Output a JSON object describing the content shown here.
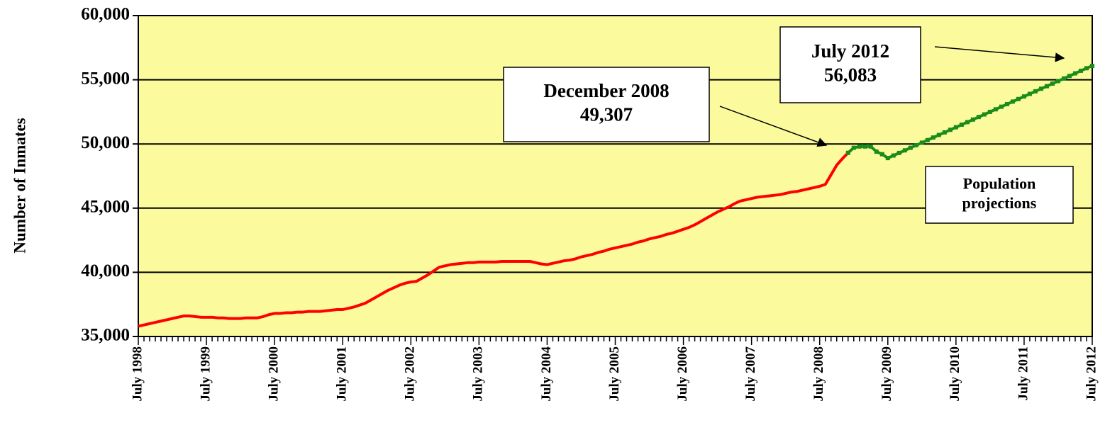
{
  "chart_data": {
    "type": "line",
    "y_label": "Number of Inmates",
    "categories": [
      "July 1998",
      null,
      null,
      null,
      null,
      null,
      null,
      null,
      null,
      null,
      null,
      null,
      "July 1999",
      null,
      null,
      null,
      null,
      null,
      null,
      null,
      null,
      null,
      null,
      null,
      "July 2000",
      null,
      null,
      null,
      null,
      null,
      null,
      null,
      null,
      null,
      null,
      null,
      "July 2001",
      null,
      null,
      null,
      null,
      null,
      null,
      null,
      null,
      null,
      null,
      null,
      "July 2002",
      null,
      null,
      null,
      null,
      null,
      null,
      null,
      null,
      null,
      null,
      null,
      "July 2003",
      null,
      null,
      null,
      null,
      null,
      null,
      null,
      null,
      null,
      null,
      null,
      "July 2004",
      null,
      null,
      null,
      null,
      null,
      null,
      null,
      null,
      null,
      null,
      null,
      "July 2005",
      null,
      null,
      null,
      null,
      null,
      null,
      null,
      null,
      null,
      null,
      null,
      "July 2006",
      null,
      null,
      null,
      null,
      null,
      null,
      null,
      null,
      null,
      null,
      null,
      "July 2007",
      null,
      null,
      null,
      null,
      null,
      null,
      null,
      null,
      null,
      null,
      null,
      "July 2008",
      null,
      null,
      null,
      null,
      null,
      null,
      null,
      null,
      null,
      null,
      null,
      "July 2009",
      null,
      null,
      null,
      null,
      null,
      null,
      null,
      null,
      null,
      null,
      null,
      "July 2010",
      null,
      null,
      null,
      null,
      null,
      null,
      null,
      null,
      null,
      null,
      null,
      "July 2011",
      null,
      null,
      null,
      null,
      null,
      null,
      null,
      null,
      null,
      null,
      null,
      "July 2012"
    ],
    "series": [
      {
        "color": "#ff0000",
        "markers": false,
        "values": [
          35800,
          35900,
          36000,
          36100,
          36200,
          36300,
          36400,
          36500,
          36600,
          36600,
          36550,
          36500,
          36500,
          36500,
          36450,
          36450,
          36400,
          36400,
          36400,
          36450,
          36450,
          36450,
          36550,
          36700,
          36800,
          36800,
          36850,
          36850,
          36900,
          36900,
          36950,
          36950,
          36950,
          37000,
          37050,
          37100,
          37100,
          37200,
          37300,
          37450,
          37600,
          37850,
          38100,
          38350,
          38600,
          38800,
          39000,
          39150,
          39250,
          39300,
          39550,
          39800,
          40100,
          40400,
          40500,
          40600,
          40650,
          40700,
          40750,
          40750,
          40800,
          40800,
          40800,
          40800,
          40850,
          40850,
          40850,
          40850,
          40850,
          40850,
          40750,
          40650,
          40600,
          40700,
          40800,
          40900,
          40950,
          41050,
          41200,
          41300,
          41400,
          41550,
          41650,
          41800,
          41900,
          42000,
          42100,
          42200,
          42350,
          42450,
          42600,
          42700,
          42800,
          42950,
          43050,
          43200,
          43350,
          43500,
          43700,
          43950,
          44200,
          44450,
          44700,
          44900,
          45100,
          45350,
          45550,
          45650,
          45750,
          45850,
          45900,
          45950,
          46000,
          46050,
          46150,
          46250,
          46300,
          46400,
          46500,
          46600,
          46700,
          46850,
          47600,
          48350,
          48850,
          49307,
          null,
          null,
          null,
          null,
          null,
          null,
          null,
          null,
          null,
          null,
          null,
          null,
          null,
          null,
          null,
          null,
          null,
          null,
          null,
          null,
          null,
          null,
          null,
          null,
          null,
          null,
          null,
          null,
          null,
          null,
          null,
          null,
          null,
          null,
          null,
          null,
          null,
          null,
          null,
          null,
          null,
          null,
          null
        ]
      },
      {
        "color": "#1a8c1a",
        "markers": true,
        "values": [
          null,
          null,
          null,
          null,
          null,
          null,
          null,
          null,
          null,
          null,
          null,
          null,
          null,
          null,
          null,
          null,
          null,
          null,
          null,
          null,
          null,
          null,
          null,
          null,
          null,
          null,
          null,
          null,
          null,
          null,
          null,
          null,
          null,
          null,
          null,
          null,
          null,
          null,
          null,
          null,
          null,
          null,
          null,
          null,
          null,
          null,
          null,
          null,
          null,
          null,
          null,
          null,
          null,
          null,
          null,
          null,
          null,
          null,
          null,
          null,
          null,
          null,
          null,
          null,
          null,
          null,
          null,
          null,
          null,
          null,
          null,
          null,
          null,
          null,
          null,
          null,
          null,
          null,
          null,
          null,
          null,
          null,
          null,
          null,
          null,
          null,
          null,
          null,
          null,
          null,
          null,
          null,
          null,
          null,
          null,
          null,
          null,
          null,
          null,
          null,
          null,
          null,
          null,
          null,
          null,
          null,
          null,
          null,
          null,
          null,
          null,
          null,
          null,
          null,
          null,
          null,
          null,
          null,
          null,
          null,
          null,
          null,
          null,
          null,
          null,
          49307,
          49700,
          49800,
          49800,
          49800,
          49400,
          49200,
          48900,
          49100,
          49300,
          49500,
          49700,
          49900,
          50100,
          50300,
          50500,
          50700,
          50900,
          51100,
          51300,
          51500,
          51700,
          51900,
          52100,
          52300,
          52500,
          52700,
          52900,
          53100,
          53300,
          53500,
          53700,
          53900,
          54100,
          54300,
          54500,
          54700,
          54900,
          55100,
          55300,
          55500,
          55700,
          55900,
          56083
        ]
      }
    ],
    "ylim": [
      35000,
      60000
    ],
    "yticks": [
      {
        "value": 35000,
        "label": "35,000"
      },
      {
        "value": 40000,
        "label": "40,000"
      },
      {
        "value": 45000,
        "label": "45,000"
      },
      {
        "value": 50000,
        "label": "50,000"
      },
      {
        "value": 55000,
        "label": "55,000"
      },
      {
        "value": 60000,
        "label": "60,000"
      }
    ],
    "grid": true,
    "annotations": [
      {
        "lines": [
          "December 2008",
          "49,307"
        ]
      },
      {
        "lines": [
          "July 2012",
          "56,083"
        ]
      },
      {
        "lines": [
          "Population",
          "projections"
        ]
      }
    ]
  }
}
